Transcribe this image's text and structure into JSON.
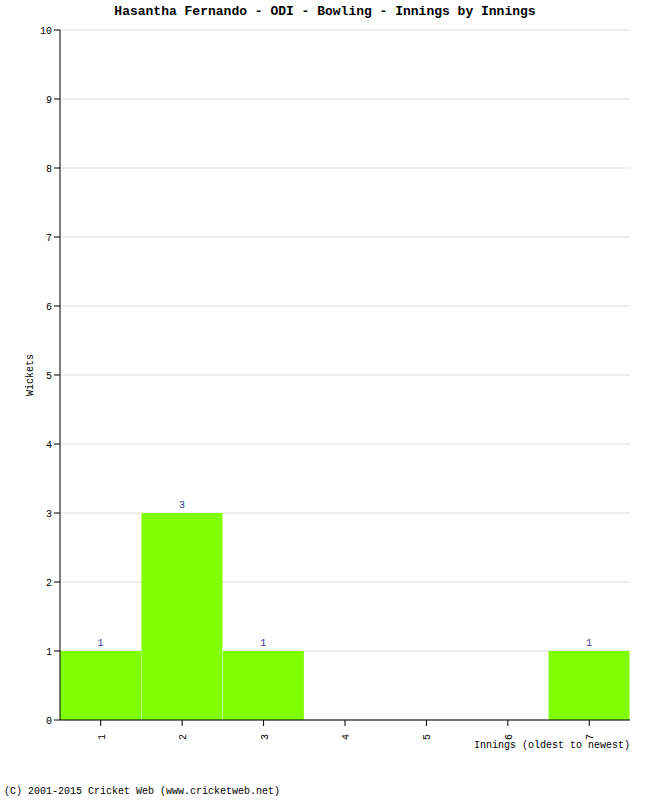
{
  "chart_data": {
    "type": "bar",
    "title": "Hasantha Fernando - ODI - Bowling - Innings by Innings",
    "x_label": "Innings (oldest to newest)",
    "y_label": "Wickets",
    "annotations": [
      "(C) 2001-2015 Cricket Web (www.cricketweb.net)"
    ],
    "categories": [
      "1",
      "2",
      "3",
      "4",
      "5",
      "6",
      "7"
    ],
    "values": [
      1,
      3,
      1,
      0,
      0,
      0,
      1
    ],
    "color": "#80ff00",
    "ylim": [
      0,
      10
    ],
    "yticks": [
      0,
      1,
      2,
      3,
      4,
      5,
      6,
      7,
      8,
      9,
      10
    ],
    "grid": true,
    "data_labels": true
  }
}
